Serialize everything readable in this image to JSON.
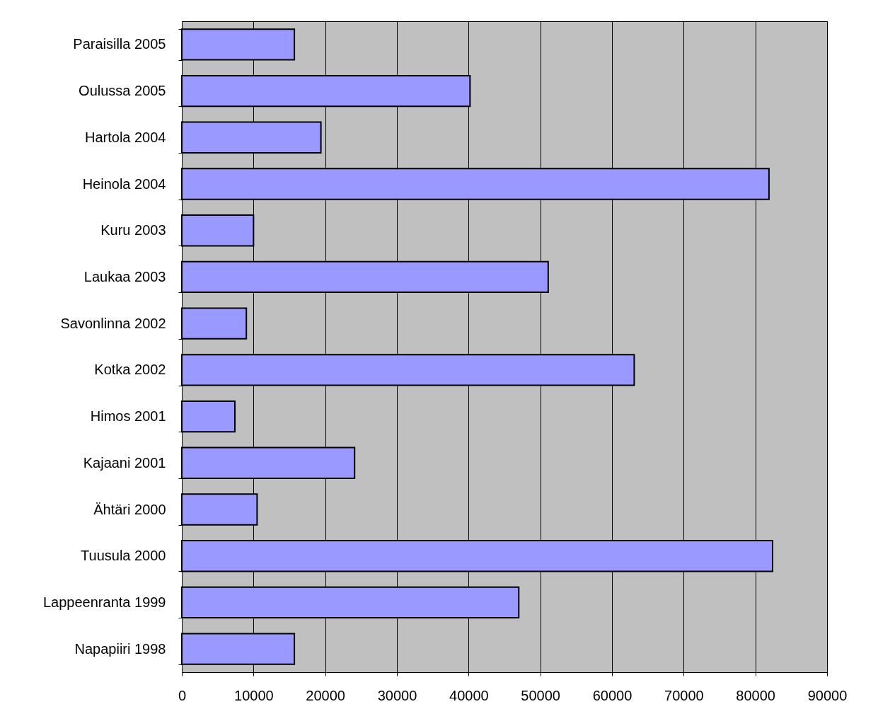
{
  "chart_data": {
    "type": "bar",
    "orientation": "horizontal",
    "categories": [
      "Paraisilla 2005",
      "Oulussa 2005",
      "Hartola 2004",
      "Heinola 2004",
      "Kuru 2003",
      "Laukaa 2003",
      "Savonlinna 2002",
      "Kotka 2002",
      "Himos 2001",
      "Kajaani 2001",
      "Ähtäri 2000",
      "Tuusula 2000",
      "Lappeenranta 1999",
      "Napapiiri 1998"
    ],
    "values": [
      15700,
      40200,
      19400,
      81900,
      10000,
      51100,
      9000,
      63100,
      7400,
      24100,
      10500,
      82400,
      47000,
      15700
    ],
    "color": "#9999ff",
    "xlim": [
      0,
      90000
    ],
    "xticks": [
      0,
      10000,
      20000,
      30000,
      40000,
      50000,
      60000,
      70000,
      80000,
      90000
    ],
    "grid": "x"
  }
}
